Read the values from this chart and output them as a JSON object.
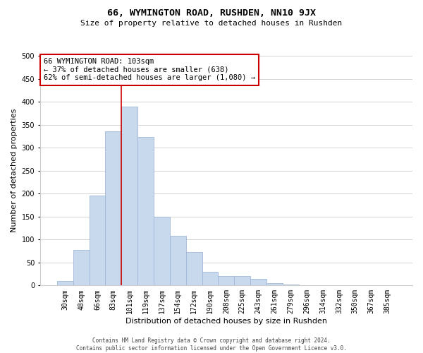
{
  "title": "66, WYMINGTON ROAD, RUSHDEN, NN10 9JX",
  "subtitle": "Size of property relative to detached houses in Rushden",
  "xlabel": "Distribution of detached houses by size in Rushden",
  "ylabel": "Number of detached properties",
  "bar_labels": [
    "30sqm",
    "48sqm",
    "66sqm",
    "83sqm",
    "101sqm",
    "119sqm",
    "137sqm",
    "154sqm",
    "172sqm",
    "190sqm",
    "208sqm",
    "225sqm",
    "243sqm",
    "261sqm",
    "279sqm",
    "296sqm",
    "314sqm",
    "332sqm",
    "350sqm",
    "367sqm",
    "385sqm"
  ],
  "bar_values": [
    10,
    78,
    196,
    336,
    390,
    323,
    150,
    108,
    73,
    30,
    20,
    20,
    14,
    5,
    2,
    1,
    0,
    0,
    0,
    0,
    0
  ],
  "bar_color": "#c8d9ee",
  "bar_edge_color": "#a0b8d8",
  "bar_width": 1.0,
  "ylim": [
    0,
    500
  ],
  "yticks": [
    0,
    50,
    100,
    150,
    200,
    250,
    300,
    350,
    400,
    450,
    500
  ],
  "vline_index": 4,
  "vline_color": "#cc0000",
  "annotation_text": "66 WYMINGTON ROAD: 103sqm\n← 37% of detached houses are smaller (638)\n62% of semi-detached houses are larger (1,080) →",
  "annotation_box_color": "#ffffff",
  "annotation_box_edge": "#cc0000",
  "footer_line1": "Contains HM Land Registry data © Crown copyright and database right 2024.",
  "footer_line2": "Contains public sector information licensed under the Open Government Licence v3.0.",
  "bg_color": "#ffffff",
  "grid_color": "#cccccc",
  "title_fontsize": 9.5,
  "subtitle_fontsize": 8,
  "ylabel_fontsize": 8,
  "xlabel_fontsize": 8,
  "tick_fontsize": 7,
  "annotation_fontsize": 7.5,
  "footer_fontsize": 5.5
}
